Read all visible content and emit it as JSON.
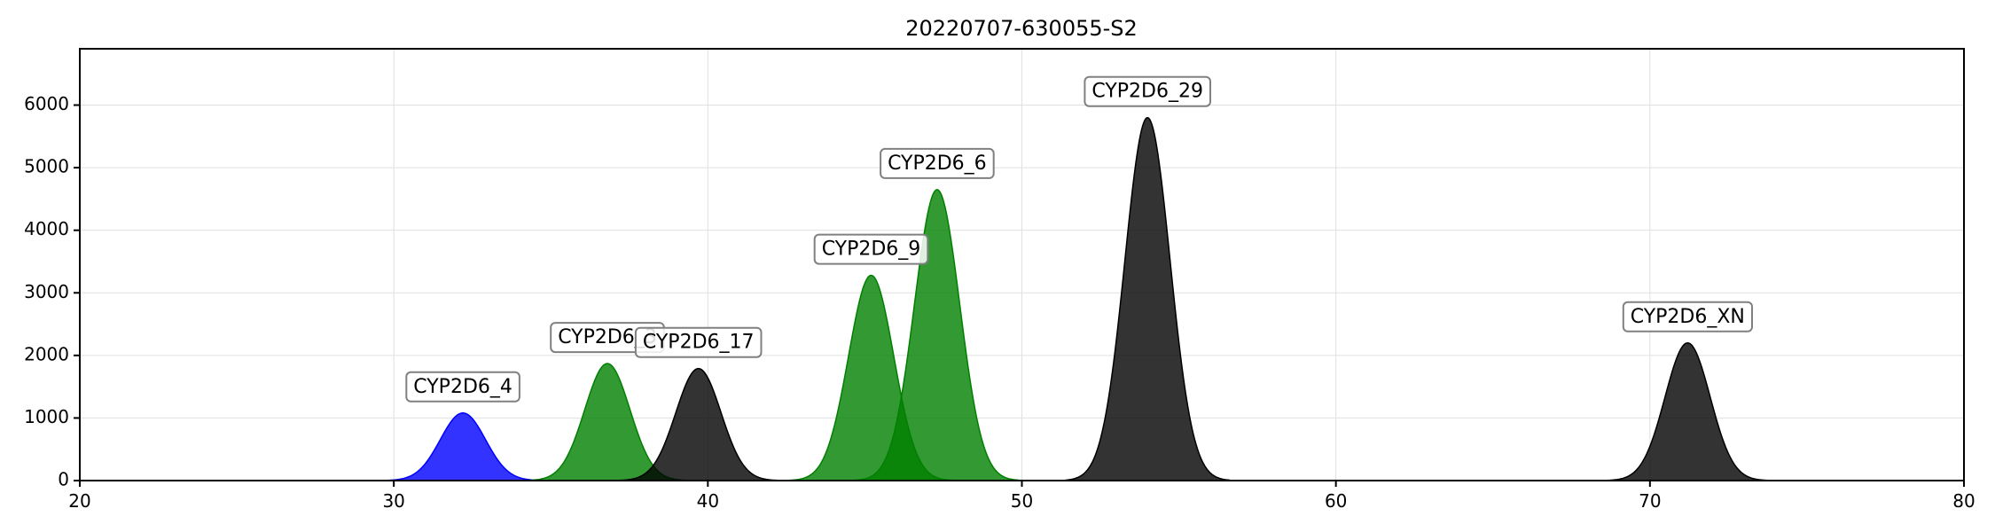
{
  "chart_data": {
    "type": "area",
    "title": "20220707-630055-S2",
    "xlabel": "",
    "ylabel": "",
    "xlim": [
      20,
      80
    ],
    "ylim": [
      0,
      6900
    ],
    "x_ticks": [
      20,
      30,
      40,
      50,
      60,
      70,
      80
    ],
    "y_ticks": [
      0,
      1000,
      2000,
      3000,
      4000,
      5000,
      6000
    ],
    "grid": true,
    "peaks": [
      {
        "label": "CYP2D6_4",
        "center": 32.2,
        "height": 1080,
        "sigma": 0.72,
        "color": "#0000ff",
        "label_y": 1490
      },
      {
        "label": "CYP2D6_3",
        "center": 36.8,
        "height": 1870,
        "sigma": 0.72,
        "color": "#008000",
        "label_y": 2280
      },
      {
        "label": "CYP2D6_17",
        "center": 39.7,
        "height": 1790,
        "sigma": 0.72,
        "color": "#000000",
        "label_y": 2200
      },
      {
        "label": "CYP2D6_9",
        "center": 45.2,
        "height": 3280,
        "sigma": 0.72,
        "color": "#008000",
        "label_y": 3690
      },
      {
        "label": "CYP2D6_6",
        "center": 47.3,
        "height": 4650,
        "sigma": 0.72,
        "color": "#008000",
        "label_y": 5060
      },
      {
        "label": "CYP2D6_29",
        "center": 54.0,
        "height": 5800,
        "sigma": 0.72,
        "color": "#000000",
        "label_y": 6210
      },
      {
        "label": "CYP2D6_XN",
        "center": 71.2,
        "height": 2200,
        "sigma": 0.72,
        "color": "#000000",
        "label_y": 2610
      }
    ]
  }
}
